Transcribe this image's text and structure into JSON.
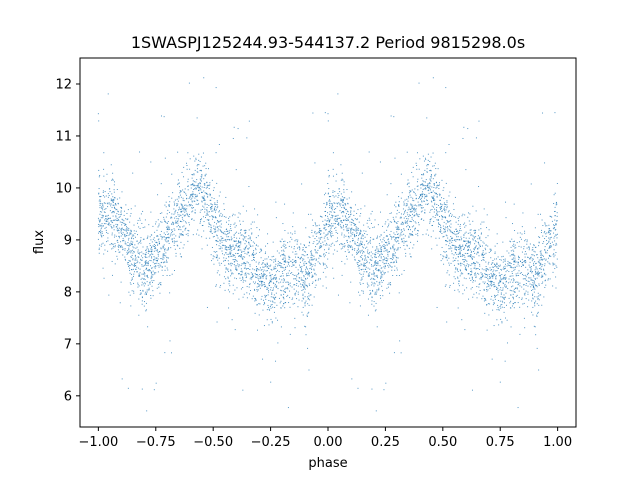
{
  "chart_data": {
    "type": "scatter",
    "title": "1SWASPJ125244.93-544137.2 Period 9815298.0s",
    "xlabel": "phase",
    "ylabel": "flux",
    "xlim": [
      -1.08,
      1.08
    ],
    "ylim": [
      5.4,
      12.5
    ],
    "xticks": [
      -1.0,
      -0.75,
      -0.5,
      -0.25,
      0.0,
      0.25,
      0.5,
      0.75,
      1.0
    ],
    "xtick_labels": [
      "−1.00",
      "−0.75",
      "−0.50",
      "−0.25",
      "0.00",
      "0.25",
      "0.50",
      "0.75",
      "1.00"
    ],
    "yticks": [
      6,
      7,
      8,
      9,
      10,
      11,
      12
    ],
    "ytick_labels": [
      "6",
      "7",
      "8",
      "9",
      "10",
      "11",
      "12"
    ],
    "grid": false,
    "marker_color": "#1f77b4",
    "period_repeat": 1.0,
    "trend_phase": [
      0.0,
      0.03,
      0.06,
      0.1,
      0.15,
      0.2,
      0.25,
      0.3,
      0.35,
      0.4,
      0.45,
      0.5,
      0.55,
      0.6,
      0.65,
      0.7,
      0.75,
      0.8,
      0.85,
      0.9,
      0.95,
      1.0
    ],
    "trend_flux": [
      9.3,
      9.6,
      9.5,
      9.2,
      8.8,
      8.5,
      8.7,
      9.0,
      9.4,
      9.8,
      10.0,
      9.4,
      8.9,
      8.7,
      8.6,
      8.3,
      8.1,
      8.4,
      8.5,
      8.2,
      8.8,
      9.3
    ],
    "n_points_per_cycle": 2600
  }
}
